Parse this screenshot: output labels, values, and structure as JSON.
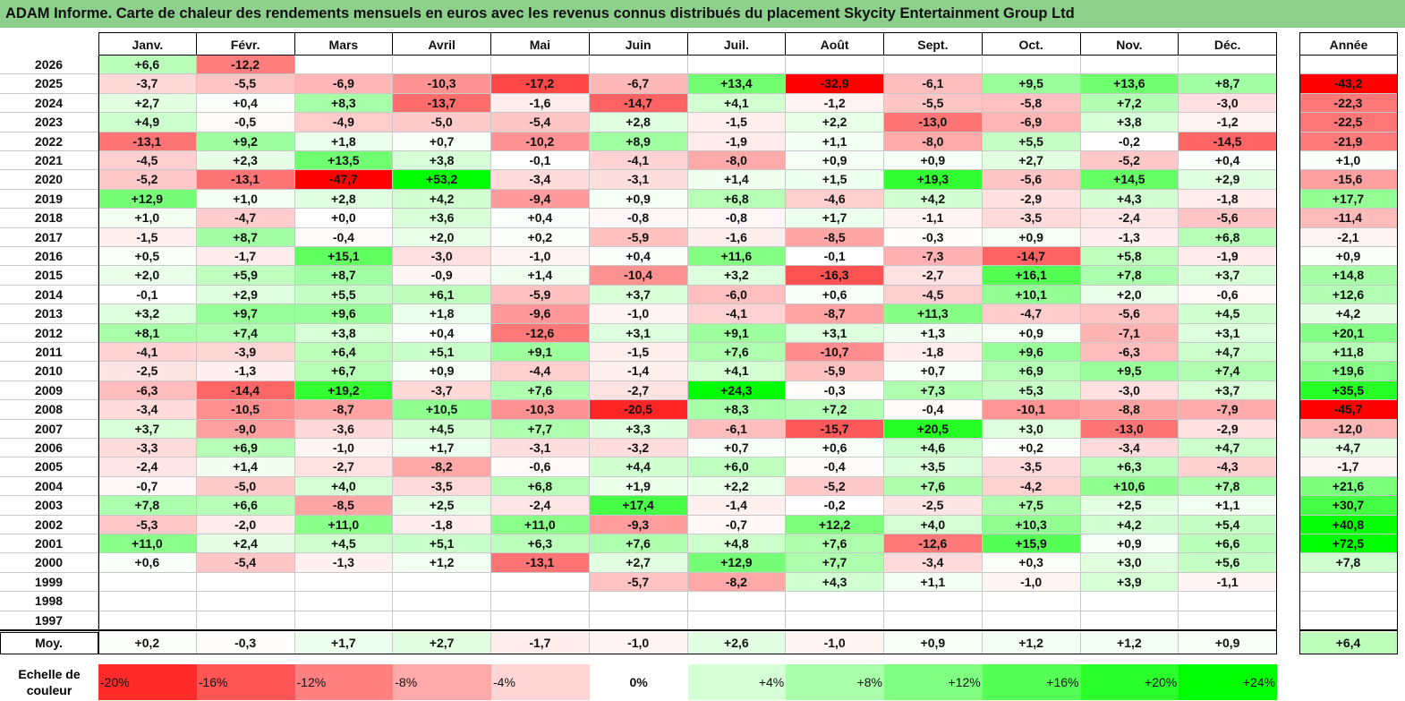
{
  "title": "ADAM Informe. Carte de chaleur des rendements mensuels en euros avec les revenus connus distribués du placement Skycity Entertainment Group Ltd",
  "chart_data": {
    "type": "heatmap",
    "months": [
      "Janv.",
      "Févr.",
      "Mars",
      "Avril",
      "Mai",
      "Juin",
      "Juil.",
      "Août",
      "Sept.",
      "Oct.",
      "Nov.",
      "Déc."
    ],
    "year_header": "Année",
    "avg_label": "Moy.",
    "years": [
      {
        "year": "2026",
        "m": [
          "+6,6",
          "-12,2",
          "",
          "",
          "",
          "",
          "",
          "",
          "",
          "",
          "",
          ""
        ],
        "y": ""
      },
      {
        "year": "2025",
        "m": [
          "-3,7",
          "-5,5",
          "-6,9",
          "-10,3",
          "-17,2",
          "-6,7",
          "+13,4",
          "-32,9",
          "-6,1",
          "+9,5",
          "+13,6",
          "+8,7"
        ],
        "y": "-43,2"
      },
      {
        "year": "2024",
        "m": [
          "+2,7",
          "+0,4",
          "+8,3",
          "-13,7",
          "-1,6",
          "-14,7",
          "+4,1",
          "-1,2",
          "-5,5",
          "-5,8",
          "+7,2",
          "-3,0"
        ],
        "y": "-22,3"
      },
      {
        "year": "2023",
        "m": [
          "+4,9",
          "-0,5",
          "-4,9",
          "-5,0",
          "-5,4",
          "+2,8",
          "-1,5",
          "+2,2",
          "-13,0",
          "-6,9",
          "+3,8",
          "-1,2"
        ],
        "y": "-22,5"
      },
      {
        "year": "2022",
        "m": [
          "-13,1",
          "+9,2",
          "+1,8",
          "+0,7",
          "-10,2",
          "+8,9",
          "-1,9",
          "+1,1",
          "-8,0",
          "+5,5",
          "-0,2",
          "-14,5"
        ],
        "y": "-21,9"
      },
      {
        "year": "2021",
        "m": [
          "-4,5",
          "+2,3",
          "+13,5",
          "+3,8",
          "-0,1",
          "-4,1",
          "-8,0",
          "+0,9",
          "+0,9",
          "+2,7",
          "-5,2",
          "+0,4"
        ],
        "y": "+1,0"
      },
      {
        "year": "2020",
        "m": [
          "-5,2",
          "-13,1",
          "-47,7",
          "+53,2",
          "-3,4",
          "-3,1",
          "+1,4",
          "+1,5",
          "+19,3",
          "-5,6",
          "+14,5",
          "+2,9"
        ],
        "y": "-15,6"
      },
      {
        "year": "2019",
        "m": [
          "+12,9",
          "+1,0",
          "+2,8",
          "+4,2",
          "-9,4",
          "+0,9",
          "+6,8",
          "-4,6",
          "+4,2",
          "-2,9",
          "+4,3",
          "-1,8"
        ],
        "y": "+17,7"
      },
      {
        "year": "2018",
        "m": [
          "+1,0",
          "-4,7",
          "+0,0",
          "+3,6",
          "+0,4",
          "-0,8",
          "-0,8",
          "+1,7",
          "-1,1",
          "-3,5",
          "-2,4",
          "-5,6"
        ],
        "y": "-11,4"
      },
      {
        "year": "2017",
        "m": [
          "-1,5",
          "+8,7",
          "-0,4",
          "+2,0",
          "+0,2",
          "-5,9",
          "-1,6",
          "-8,5",
          "-0,3",
          "+0,9",
          "-1,3",
          "+6,8"
        ],
        "y": "-2,1"
      },
      {
        "year": "2016",
        "m": [
          "+0,5",
          "-1,7",
          "+15,1",
          "-3,0",
          "-1,0",
          "+0,4",
          "+11,6",
          "-0,1",
          "-7,3",
          "-14,7",
          "+5,8",
          "-1,9"
        ],
        "y": "+0,9"
      },
      {
        "year": "2015",
        "m": [
          "+2,0",
          "+5,9",
          "+8,7",
          "-0,9",
          "+1,4",
          "-10,4",
          "+3,2",
          "-16,3",
          "-2,7",
          "+16,1",
          "+7,8",
          "+3,7"
        ],
        "y": "+14,8"
      },
      {
        "year": "2014",
        "m": [
          "-0,1",
          "+2,9",
          "+5,5",
          "+6,1",
          "-5,9",
          "+3,7",
          "-6,0",
          "+0,6",
          "-4,5",
          "+10,1",
          "+2,0",
          "-0,6"
        ],
        "y": "+12,6"
      },
      {
        "year": "2013",
        "m": [
          "+3,2",
          "+9,7",
          "+9,6",
          "+1,8",
          "-9,6",
          "-1,0",
          "-4,1",
          "-8,7",
          "+11,3",
          "-4,7",
          "-5,6",
          "+4,5"
        ],
        "y": "+4,2"
      },
      {
        "year": "2012",
        "m": [
          "+8,1",
          "+7,4",
          "+3,8",
          "+0,4",
          "-12,6",
          "+3,1",
          "+9,1",
          "+3,1",
          "+1,3",
          "+0,9",
          "-7,1",
          "+3,1"
        ],
        "y": "+20,1"
      },
      {
        "year": "2011",
        "m": [
          "-4,1",
          "-3,9",
          "+6,4",
          "+5,1",
          "+9,1",
          "-1,5",
          "+7,6",
          "-10,7",
          "-1,8",
          "+9,6",
          "-6,3",
          "+4,7"
        ],
        "y": "+11,8"
      },
      {
        "year": "2010",
        "m": [
          "-2,5",
          "-1,3",
          "+6,7",
          "+0,9",
          "-4,4",
          "-1,4",
          "+4,1",
          "-5,9",
          "+0,7",
          "+6,9",
          "+9,5",
          "+7,4"
        ],
        "y": "+19,6"
      },
      {
        "year": "2009",
        "m": [
          "-6,3",
          "-14,4",
          "+19,2",
          "-3,7",
          "+7,6",
          "-2,7",
          "+24,3",
          "-0,3",
          "+7,3",
          "+5,3",
          "-3,0",
          "+3,7"
        ],
        "y": "+35,5"
      },
      {
        "year": "2008",
        "m": [
          "-3,4",
          "-10,5",
          "-8,7",
          "+10,5",
          "-10,3",
          "-20,5",
          "+8,3",
          "+7,2",
          "-0,4",
          "-10,1",
          "-8,8",
          "-7,9"
        ],
        "y": "-45,7"
      },
      {
        "year": "2007",
        "m": [
          "+3,7",
          "-9,0",
          "-3,6",
          "+4,5",
          "+7,7",
          "+3,3",
          "-6,1",
          "-15,7",
          "+20,5",
          "+3,0",
          "-13,0",
          "-2,9"
        ],
        "y": "-12,0"
      },
      {
        "year": "2006",
        "m": [
          "-3,3",
          "+6,9",
          "-1,0",
          "+1,7",
          "-3,1",
          "-3,2",
          "+0,7",
          "+0,6",
          "+4,6",
          "+0,2",
          "-3,4",
          "+4,7"
        ],
        "y": "+4,7"
      },
      {
        "year": "2005",
        "m": [
          "-2,4",
          "+1,4",
          "-2,7",
          "-8,2",
          "-0,6",
          "+4,4",
          "+6,0",
          "-0,4",
          "+3,5",
          "-3,5",
          "+6,3",
          "-4,3"
        ],
        "y": "-1,7"
      },
      {
        "year": "2004",
        "m": [
          "-0,7",
          "-5,0",
          "+4,0",
          "-3,5",
          "+6,8",
          "+1,9",
          "+2,2",
          "-5,2",
          "+7,6",
          "-4,2",
          "+10,6",
          "+7,8"
        ],
        "y": "+21,6"
      },
      {
        "year": "2003",
        "m": [
          "+7,8",
          "+6,6",
          "-8,5",
          "+2,5",
          "-2,4",
          "+17,4",
          "-1,4",
          "-0,2",
          "-2,5",
          "+7,5",
          "+2,5",
          "+1,1"
        ],
        "y": "+30,7"
      },
      {
        "year": "2002",
        "m": [
          "-5,3",
          "-2,0",
          "+11,0",
          "-1,8",
          "+11,0",
          "-9,3",
          "-0,7",
          "+12,2",
          "+4,0",
          "+10,3",
          "+4,2",
          "+5,4"
        ],
        "y": "+40,8"
      },
      {
        "year": "2001",
        "m": [
          "+11,0",
          "+2,4",
          "+4,5",
          "+5,1",
          "+6,3",
          "+7,6",
          "+4,8",
          "+7,6",
          "-12,6",
          "+15,9",
          "+0,9",
          "+6,6"
        ],
        "y": "+72,5"
      },
      {
        "year": "2000",
        "m": [
          "+0,6",
          "-5,4",
          "-1,3",
          "+1,2",
          "-13,1",
          "+2,7",
          "+12,9",
          "+7,7",
          "-3,4",
          "+0,3",
          "+3,0",
          "+5,6"
        ],
        "y": "+7,8"
      },
      {
        "year": "1999",
        "m": [
          "",
          "",
          "",
          "",
          "",
          "-5,7",
          "-8,2",
          "+4,3",
          "+1,1",
          "-1,0",
          "+3,9",
          "-1,1"
        ],
        "y": ""
      },
      {
        "year": "1998",
        "m": [
          "",
          "",
          "",
          "",
          "",
          "",
          "",
          "",
          "",
          "",
          "",
          ""
        ],
        "y": ""
      },
      {
        "year": "1997",
        "m": [
          "",
          "",
          "",
          "",
          "",
          "",
          "",
          "",
          "",
          "",
          "",
          ""
        ],
        "y": ""
      }
    ],
    "averages": {
      "m": [
        "+0,2",
        "-0,3",
        "+1,7",
        "+2,7",
        "-1,7",
        "-1,0",
        "+2,6",
        "-1,0",
        "+0,9",
        "+1,2",
        "+1,2",
        "+0,9"
      ],
      "y": "+6,4"
    },
    "scale_title": "Echelle de couleur",
    "scale": [
      {
        "label": "-20%",
        "value": -20
      },
      {
        "label": "-16%",
        "value": -16
      },
      {
        "label": "-12%",
        "value": -12
      },
      {
        "label": "-8%",
        "value": -8
      },
      {
        "label": "-4%",
        "value": -4
      },
      {
        "label": "0%",
        "value": 0
      },
      {
        "label": "+4%",
        "value": 4
      },
      {
        "label": "+8%",
        "value": 8
      },
      {
        "label": "+12%",
        "value": 12
      },
      {
        "label": "+16%",
        "value": 16
      },
      {
        "label": "+20%",
        "value": 20
      },
      {
        "label": "+24%",
        "value": 24
      }
    ]
  }
}
